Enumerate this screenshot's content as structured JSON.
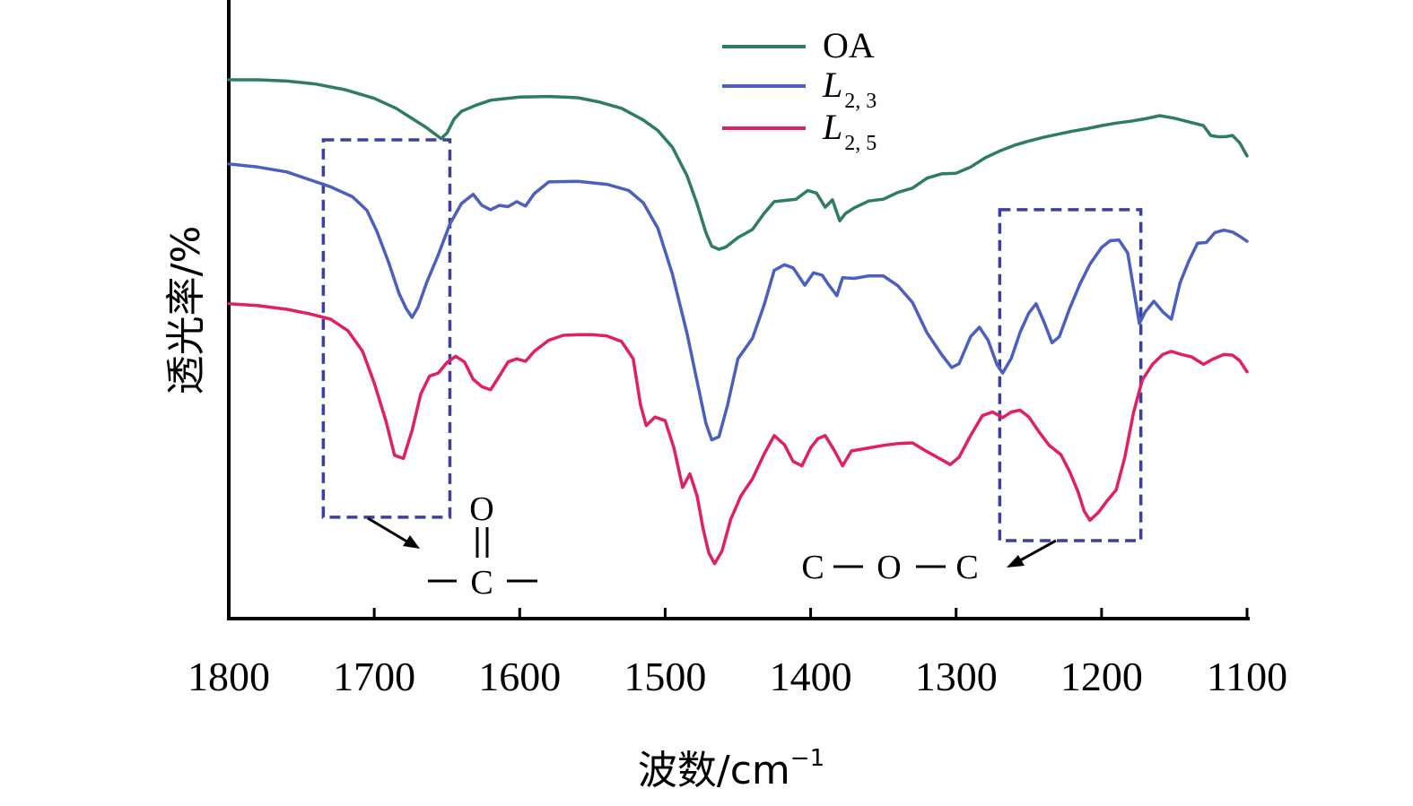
{
  "chart_data": {
    "type": "line",
    "title": "",
    "xlabel": "波数/cm",
    "xlabel_sup": "−1",
    "ylabel": "透光率/%",
    "xlim": [
      1800,
      1100
    ],
    "x_reversed": true,
    "x_ticks": [
      1800,
      1700,
      1600,
      1500,
      1400,
      1300,
      1200,
      1100
    ],
    "y_ticks_shown": false,
    "grid": false,
    "legend_position": "top-center",
    "y_scale_note": "transmittance in arbitrary offset units (0 = bottom axis, 100 = top)",
    "series": [
      {
        "name": "OA",
        "color": "#2e7d5f",
        "points": [
          [
            1800,
            87.1
          ],
          [
            1780,
            87.1
          ],
          [
            1760,
            86.9
          ],
          [
            1740,
            86.4
          ],
          [
            1720,
            85.5
          ],
          [
            1700,
            84.1
          ],
          [
            1685,
            82.5
          ],
          [
            1675,
            81.0
          ],
          [
            1665,
            79.5
          ],
          [
            1658,
            78.3
          ],
          [
            1654,
            77.6
          ],
          [
            1650,
            78.5
          ],
          [
            1645,
            80.8
          ],
          [
            1640,
            82.0
          ],
          [
            1630,
            83.0
          ],
          [
            1620,
            83.8
          ],
          [
            1600,
            84.3
          ],
          [
            1580,
            84.4
          ],
          [
            1560,
            84.2
          ],
          [
            1545,
            83.5
          ],
          [
            1530,
            82.5
          ],
          [
            1515,
            80.6
          ],
          [
            1505,
            78.9
          ],
          [
            1495,
            76.2
          ],
          [
            1485,
            71.6
          ],
          [
            1478,
            67.0
          ],
          [
            1472,
            62.4
          ],
          [
            1468,
            60.2
          ],
          [
            1463,
            59.7
          ],
          [
            1458,
            60.1
          ],
          [
            1450,
            61.6
          ],
          [
            1440,
            62.9
          ],
          [
            1432,
            65.5
          ],
          [
            1425,
            67.4
          ],
          [
            1418,
            67.6
          ],
          [
            1410,
            67.8
          ],
          [
            1402,
            69.2
          ],
          [
            1396,
            68.8
          ],
          [
            1390,
            66.5
          ],
          [
            1385,
            67.7
          ],
          [
            1380,
            64.3
          ],
          [
            1376,
            65.5
          ],
          [
            1370,
            66.4
          ],
          [
            1360,
            67.5
          ],
          [
            1350,
            67.8
          ],
          [
            1340,
            68.9
          ],
          [
            1330,
            69.6
          ],
          [
            1320,
            71.2
          ],
          [
            1310,
            71.9
          ],
          [
            1300,
            72.0
          ],
          [
            1290,
            73.0
          ],
          [
            1280,
            74.5
          ],
          [
            1270,
            75.6
          ],
          [
            1260,
            76.5
          ],
          [
            1250,
            77.2
          ],
          [
            1240,
            77.8
          ],
          [
            1230,
            78.3
          ],
          [
            1220,
            78.8
          ],
          [
            1210,
            79.2
          ],
          [
            1200,
            79.7
          ],
          [
            1190,
            80.1
          ],
          [
            1180,
            80.4
          ],
          [
            1170,
            80.8
          ],
          [
            1160,
            81.3
          ],
          [
            1150,
            80.9
          ],
          [
            1140,
            80.3
          ],
          [
            1130,
            79.7
          ],
          [
            1125,
            78.1
          ],
          [
            1120,
            77.9
          ],
          [
            1115,
            77.9
          ],
          [
            1110,
            78.1
          ],
          [
            1105,
            76.9
          ],
          [
            1100,
            74.8
          ]
        ]
      },
      {
        "name": "L",
        "name_sub": "2, 3",
        "color": "#4a5fc0",
        "points": [
          [
            1800,
            73.5
          ],
          [
            1780,
            73.0
          ],
          [
            1760,
            72.2
          ],
          [
            1745,
            71.0
          ],
          [
            1730,
            69.8
          ],
          [
            1715,
            68.2
          ],
          [
            1705,
            66.0
          ],
          [
            1698,
            62.5
          ],
          [
            1690,
            57.5
          ],
          [
            1683,
            52.6
          ],
          [
            1678,
            50.1
          ],
          [
            1674,
            48.7
          ],
          [
            1670,
            50.3
          ],
          [
            1664,
            54.3
          ],
          [
            1656,
            58.8
          ],
          [
            1648,
            63.8
          ],
          [
            1640,
            67.1
          ],
          [
            1632,
            68.6
          ],
          [
            1626,
            66.8
          ],
          [
            1620,
            66.1
          ],
          [
            1614,
            66.8
          ],
          [
            1608,
            66.6
          ],
          [
            1602,
            67.4
          ],
          [
            1596,
            66.7
          ],
          [
            1590,
            68.7
          ],
          [
            1580,
            70.6
          ],
          [
            1560,
            70.7
          ],
          [
            1540,
            70.2
          ],
          [
            1525,
            69.2
          ],
          [
            1515,
            67.2
          ],
          [
            1505,
            63.1
          ],
          [
            1495,
            55.7
          ],
          [
            1485,
            46.1
          ],
          [
            1478,
            38.3
          ],
          [
            1472,
            31.6
          ],
          [
            1468,
            28.9
          ],
          [
            1463,
            29.4
          ],
          [
            1457,
            34.6
          ],
          [
            1450,
            42.0
          ],
          [
            1440,
            45.3
          ],
          [
            1432,
            50.7
          ],
          [
            1425,
            56.3
          ],
          [
            1418,
            57.2
          ],
          [
            1412,
            56.7
          ],
          [
            1404,
            53.9
          ],
          [
            1398,
            55.9
          ],
          [
            1392,
            55.5
          ],
          [
            1388,
            54.1
          ],
          [
            1382,
            52.2
          ],
          [
            1378,
            55.1
          ],
          [
            1370,
            55.0
          ],
          [
            1360,
            55.4
          ],
          [
            1350,
            55.4
          ],
          [
            1340,
            53.8
          ],
          [
            1330,
            51.1
          ],
          [
            1320,
            46.2
          ],
          [
            1310,
            42.7
          ],
          [
            1303,
            40.6
          ],
          [
            1298,
            41.2
          ],
          [
            1290,
            45.6
          ],
          [
            1284,
            47.1
          ],
          [
            1278,
            45.0
          ],
          [
            1272,
            41.1
          ],
          [
            1268,
            39.7
          ],
          [
            1262,
            42.1
          ],
          [
            1256,
            46.3
          ],
          [
            1250,
            49.4
          ],
          [
            1245,
            50.9
          ],
          [
            1240,
            48.2
          ],
          [
            1234,
            44.6
          ],
          [
            1229,
            45.6
          ],
          [
            1222,
            50.1
          ],
          [
            1215,
            54.0
          ],
          [
            1208,
            57.3
          ],
          [
            1200,
            60.0
          ],
          [
            1194,
            61.1
          ],
          [
            1188,
            61.2
          ],
          [
            1182,
            59.1
          ],
          [
            1178,
            53.4
          ],
          [
            1174,
            47.7
          ],
          [
            1170,
            49.6
          ],
          [
            1164,
            51.3
          ],
          [
            1158,
            49.6
          ],
          [
            1152,
            48.4
          ],
          [
            1146,
            54.3
          ],
          [
            1140,
            57.8
          ],
          [
            1134,
            60.7
          ],
          [
            1128,
            60.8
          ],
          [
            1122,
            62.4
          ],
          [
            1116,
            62.8
          ],
          [
            1110,
            62.5
          ],
          [
            1105,
            61.8
          ],
          [
            1100,
            61.0
          ]
        ]
      },
      {
        "name": "L",
        "name_sub": "2, 5",
        "color": "#e02060",
        "points": [
          [
            1800,
            50.9
          ],
          [
            1780,
            50.6
          ],
          [
            1760,
            50.0
          ],
          [
            1745,
            49.3
          ],
          [
            1730,
            48.4
          ],
          [
            1718,
            46.5
          ],
          [
            1708,
            43.2
          ],
          [
            1700,
            38.1
          ],
          [
            1692,
            32.0
          ],
          [
            1686,
            26.4
          ],
          [
            1680,
            25.9
          ],
          [
            1674,
            30.4
          ],
          [
            1668,
            36.3
          ],
          [
            1662,
            39.2
          ],
          [
            1656,
            39.7
          ],
          [
            1650,
            41.4
          ],
          [
            1644,
            42.4
          ],
          [
            1638,
            41.5
          ],
          [
            1632,
            38.7
          ],
          [
            1626,
            37.5
          ],
          [
            1620,
            37.0
          ],
          [
            1614,
            39.2
          ],
          [
            1608,
            41.5
          ],
          [
            1602,
            42.0
          ],
          [
            1596,
            41.6
          ],
          [
            1590,
            43.2
          ],
          [
            1580,
            45.0
          ],
          [
            1570,
            45.8
          ],
          [
            1560,
            45.9
          ],
          [
            1550,
            45.9
          ],
          [
            1540,
            45.7
          ],
          [
            1530,
            44.8
          ],
          [
            1522,
            42.0
          ],
          [
            1517,
            34.6
          ],
          [
            1513,
            31.2
          ],
          [
            1507,
            32.6
          ],
          [
            1500,
            32.0
          ],
          [
            1494,
            27.6
          ],
          [
            1488,
            21.2
          ],
          [
            1483,
            23.4
          ],
          [
            1478,
            19.8
          ],
          [
            1474,
            14.6
          ],
          [
            1470,
            10.6
          ],
          [
            1466,
            8.9
          ],
          [
            1461,
            10.9
          ],
          [
            1455,
            16.0
          ],
          [
            1448,
            19.8
          ],
          [
            1440,
            22.6
          ],
          [
            1432,
            26.6
          ],
          [
            1425,
            29.6
          ],
          [
            1418,
            28.1
          ],
          [
            1412,
            25.4
          ],
          [
            1406,
            24.7
          ],
          [
            1400,
            27.6
          ],
          [
            1395,
            29.1
          ],
          [
            1390,
            29.6
          ],
          [
            1384,
            27.3
          ],
          [
            1378,
            24.7
          ],
          [
            1372,
            27.1
          ],
          [
            1360,
            27.6
          ],
          [
            1350,
            28.0
          ],
          [
            1340,
            28.3
          ],
          [
            1330,
            28.4
          ],
          [
            1320,
            27.0
          ],
          [
            1310,
            25.7
          ],
          [
            1304,
            24.9
          ],
          [
            1298,
            26.1
          ],
          [
            1290,
            29.6
          ],
          [
            1282,
            32.8
          ],
          [
            1275,
            33.4
          ],
          [
            1268,
            32.5
          ],
          [
            1262,
            33.4
          ],
          [
            1256,
            33.7
          ],
          [
            1250,
            32.6
          ],
          [
            1243,
            30.2
          ],
          [
            1236,
            28.0
          ],
          [
            1228,
            26.5
          ],
          [
            1222,
            23.8
          ],
          [
            1216,
            20.4
          ],
          [
            1212,
            17.4
          ],
          [
            1208,
            15.9
          ],
          [
            1202,
            17.2
          ],
          [
            1196,
            19.1
          ],
          [
            1190,
            20.8
          ],
          [
            1184,
            26.1
          ],
          [
            1178,
            33.3
          ],
          [
            1172,
            38.6
          ],
          [
            1165,
            41.1
          ],
          [
            1158,
            42.7
          ],
          [
            1152,
            43.2
          ],
          [
            1145,
            42.7
          ],
          [
            1138,
            42.3
          ],
          [
            1130,
            41.1
          ],
          [
            1123,
            42.0
          ],
          [
            1116,
            42.7
          ],
          [
            1110,
            42.6
          ],
          [
            1105,
            41.7
          ],
          [
            1100,
            39.9
          ]
        ]
      }
    ],
    "annotation_boxes": [
      {
        "x_range": [
          1735,
          1648
        ],
        "y_range": [
          16.4,
          77.4
        ],
        "color": "#3a3fa0"
      },
      {
        "x_range": [
          1270,
          1173
        ],
        "y_range": [
          12.6,
          66.1
        ],
        "color": "#3a3fa0"
      }
    ],
    "annotations": [
      {
        "id": "carbonyl",
        "top": "O",
        "bond": "‖",
        "center": "C",
        "left_bond": "−",
        "right_bond": "−"
      },
      {
        "id": "ether",
        "text": [
          "C",
          "−",
          "O",
          "−",
          "C"
        ]
      }
    ]
  }
}
